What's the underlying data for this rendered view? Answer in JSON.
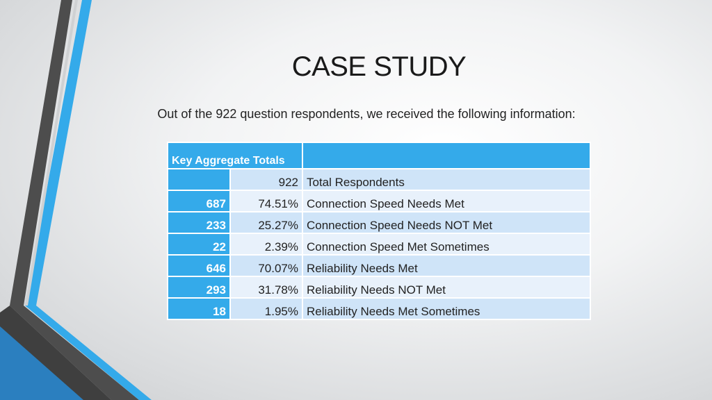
{
  "slide": {
    "title": "CASE STUDY",
    "subtitle": "Out of the 922 question respondents, we received the following information:"
  },
  "table": {
    "header": "Key Aggregate Totals",
    "rows": [
      {
        "count": "",
        "percent": "922",
        "label": "Total Respondents"
      },
      {
        "count": "687",
        "percent": "74.51%",
        "label": "Connection Speed Needs Met"
      },
      {
        "count": "233",
        "percent": "25.27%",
        "label": "Connection Speed Needs NOT Met"
      },
      {
        "count": "22",
        "percent": "2.39%",
        "label": "Connection Speed Met Sometimes"
      },
      {
        "count": "646",
        "percent": "70.07%",
        "label": "Reliability Needs Met"
      },
      {
        "count": "293",
        "percent": "31.78%",
        "label": "Reliability Needs NOT Met"
      },
      {
        "count": "18",
        "percent": "1.95%",
        "label": "Reliability Needs Met Sometimes"
      }
    ]
  },
  "colors": {
    "accent_blue": "#34aaea",
    "row_dark": "#cfe4f8",
    "row_light": "#e8f1fb",
    "stripe_gray": "#4a4a4a"
  }
}
